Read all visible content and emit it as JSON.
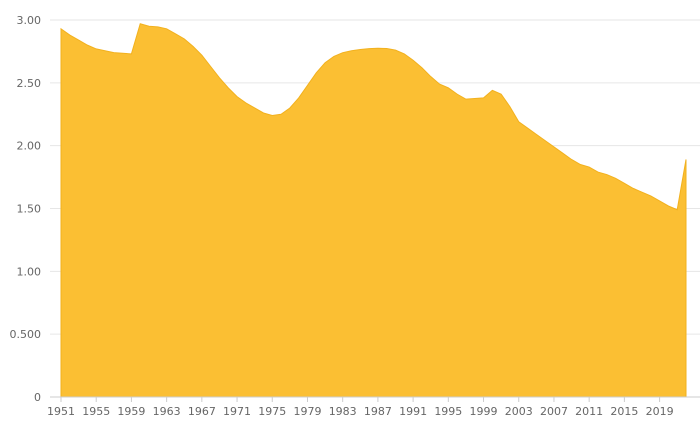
{
  "chart_data": {
    "type": "area",
    "title": "",
    "xlabel": "",
    "ylabel": "",
    "grid": "horizontal",
    "legend": "none",
    "ylim": [
      0,
      3.0
    ],
    "xlim": [
      1951,
      2022
    ],
    "color": "#fbbf33",
    "y_ticks": [
      {
        "value": 0,
        "label": "0"
      },
      {
        "value": 0.5,
        "label": "0.500"
      },
      {
        "value": 1.0,
        "label": "1.00"
      },
      {
        "value": 1.5,
        "label": "1.50"
      },
      {
        "value": 2.0,
        "label": "2.00"
      },
      {
        "value": 2.5,
        "label": "2.50"
      },
      {
        "value": 3.0,
        "label": "3.00"
      }
    ],
    "x_ticks": [
      "1951",
      "1955",
      "1959",
      "1963",
      "1967",
      "1971",
      "1975",
      "1979",
      "1983",
      "1987",
      "1991",
      "1995",
      "1999",
      "2003",
      "2007",
      "2011",
      "2015",
      "2019"
    ],
    "series": [
      {
        "values": [
          {
            "x": 1951,
            "y": 2.93
          },
          {
            "x": 1952,
            "y": 2.88
          },
          {
            "x": 1953,
            "y": 2.84
          },
          {
            "x": 1954,
            "y": 2.8
          },
          {
            "x": 1955,
            "y": 2.77
          },
          {
            "x": 1956,
            "y": 2.755
          },
          {
            "x": 1957,
            "y": 2.74
          },
          {
            "x": 1958,
            "y": 2.735
          },
          {
            "x": 1959,
            "y": 2.73
          },
          {
            "x": 1960,
            "y": 2.97
          },
          {
            "x": 1961,
            "y": 2.95
          },
          {
            "x": 1962,
            "y": 2.945
          },
          {
            "x": 1963,
            "y": 2.93
          },
          {
            "x": 1964,
            "y": 2.89
          },
          {
            "x": 1965,
            "y": 2.85
          },
          {
            "x": 1966,
            "y": 2.79
          },
          {
            "x": 1967,
            "y": 2.72
          },
          {
            "x": 1968,
            "y": 2.63
          },
          {
            "x": 1969,
            "y": 2.54
          },
          {
            "x": 1970,
            "y": 2.46
          },
          {
            "x": 1971,
            "y": 2.39
          },
          {
            "x": 1972,
            "y": 2.34
          },
          {
            "x": 1973,
            "y": 2.3
          },
          {
            "x": 1974,
            "y": 2.26
          },
          {
            "x": 1975,
            "y": 2.24
          },
          {
            "x": 1976,
            "y": 2.25
          },
          {
            "x": 1977,
            "y": 2.3
          },
          {
            "x": 1978,
            "y": 2.38
          },
          {
            "x": 1979,
            "y": 2.48
          },
          {
            "x": 1980,
            "y": 2.58
          },
          {
            "x": 1981,
            "y": 2.66
          },
          {
            "x": 1982,
            "y": 2.71
          },
          {
            "x": 1983,
            "y": 2.74
          },
          {
            "x": 1984,
            "y": 2.755
          },
          {
            "x": 1985,
            "y": 2.765
          },
          {
            "x": 1986,
            "y": 2.772
          },
          {
            "x": 1987,
            "y": 2.775
          },
          {
            "x": 1988,
            "y": 2.773
          },
          {
            "x": 1989,
            "y": 2.76
          },
          {
            "x": 1990,
            "y": 2.73
          },
          {
            "x": 1991,
            "y": 2.68
          },
          {
            "x": 1992,
            "y": 2.62
          },
          {
            "x": 1993,
            "y": 2.55
          },
          {
            "x": 1994,
            "y": 2.49
          },
          {
            "x": 1995,
            "y": 2.46
          },
          {
            "x": 1996,
            "y": 2.41
          },
          {
            "x": 1997,
            "y": 2.37
          },
          {
            "x": 1998,
            "y": 2.375
          },
          {
            "x": 1999,
            "y": 2.38
          },
          {
            "x": 2000,
            "y": 2.44
          },
          {
            "x": 2001,
            "y": 2.41
          },
          {
            "x": 2002,
            "y": 2.31
          },
          {
            "x": 2003,
            "y": 2.19
          },
          {
            "x": 2004,
            "y": 2.14
          },
          {
            "x": 2005,
            "y": 2.09
          },
          {
            "x": 2006,
            "y": 2.04
          },
          {
            "x": 2007,
            "y": 1.99
          },
          {
            "x": 2008,
            "y": 1.94
          },
          {
            "x": 2009,
            "y": 1.89
          },
          {
            "x": 2010,
            "y": 1.85
          },
          {
            "x": 2011,
            "y": 1.83
          },
          {
            "x": 2012,
            "y": 1.79
          },
          {
            "x": 2013,
            "y": 1.77
          },
          {
            "x": 2014,
            "y": 1.74
          },
          {
            "x": 2015,
            "y": 1.7
          },
          {
            "x": 2016,
            "y": 1.66
          },
          {
            "x": 2017,
            "y": 1.63
          },
          {
            "x": 2018,
            "y": 1.6
          },
          {
            "x": 2019,
            "y": 1.56
          },
          {
            "x": 2020,
            "y": 1.52
          },
          {
            "x": 2021,
            "y": 1.49
          },
          {
            "x": 2022,
            "y": 1.89
          }
        ]
      }
    ]
  }
}
